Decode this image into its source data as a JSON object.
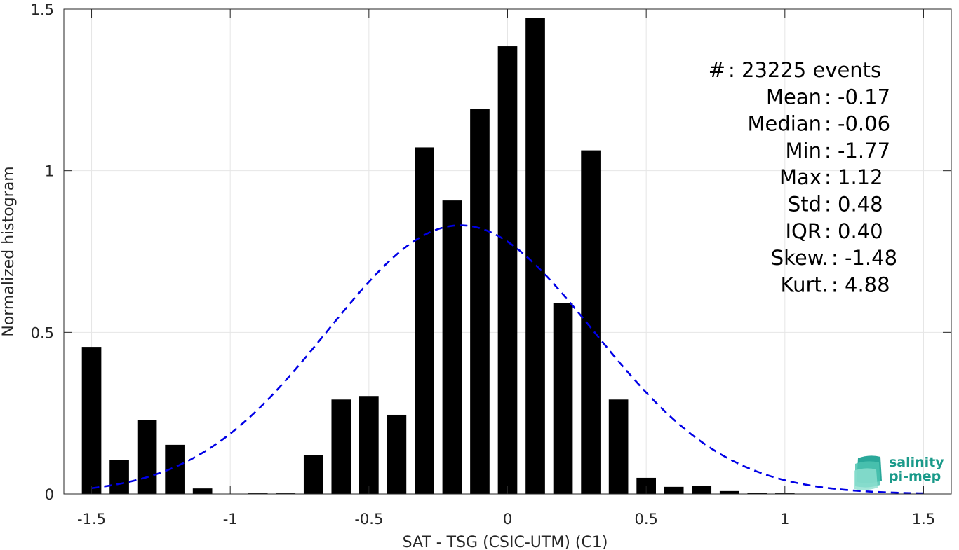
{
  "chart_data": {
    "type": "bar",
    "title": "",
    "xlabel": "SAT - TSG (CSIC-UTM) (C1)",
    "ylabel": "Normalized histogram",
    "xlim": [
      -1.6,
      1.6
    ],
    "ylim": [
      0,
      1.5
    ],
    "xticks": [
      -1.5,
      -1,
      -0.5,
      0,
      0.5,
      1,
      1.5
    ],
    "xtick_labels": [
      "-1.5",
      "-1",
      "-0.5",
      "0",
      "0.5",
      "1",
      "1.5"
    ],
    "yticks": [
      0,
      0.5,
      1,
      1.5
    ],
    "ytick_labels": [
      "0",
      "0.5",
      "1",
      "1.5"
    ],
    "grid": true,
    "bar_width": 0.07,
    "bars": {
      "x": [
        -1.5,
        -1.4,
        -1.3,
        -1.2,
        -1.1,
        -1.0,
        -0.9,
        -0.8,
        -0.7,
        -0.6,
        -0.5,
        -0.4,
        -0.3,
        -0.2,
        -0.1,
        0.0,
        0.1,
        0.2,
        0.3,
        0.4,
        0.5,
        0.6,
        0.7,
        0.8,
        0.9,
        1.0,
        1.1,
        1.2,
        1.3,
        1.4,
        1.5
      ],
      "values": [
        0.455,
        0.105,
        0.228,
        0.152,
        0.017,
        0.0,
        0.002,
        0.002,
        0.12,
        0.292,
        0.303,
        0.245,
        1.072,
        0.908,
        1.19,
        1.385,
        1.472,
        0.59,
        1.063,
        0.292,
        0.05,
        0.022,
        0.026,
        0.009,
        0.004,
        0.002,
        0.001,
        0.0,
        0.0,
        0.0,
        0.0
      ],
      "color": "#000000"
    },
    "fit": {
      "kind": "gaussian",
      "mean": -0.17,
      "std": 0.48,
      "x_range": [
        -1.5,
        1.5
      ],
      "style": "dashed",
      "color": "#0000e6"
    },
    "annotations": [
      {
        "label": "#  ",
        "value": ": 23225 events"
      },
      {
        "label": "Mean ",
        "value": ": -0.17"
      },
      {
        "label": "Median ",
        "value": ": -0.06"
      },
      {
        "label": "Min ",
        "value": ": -1.77"
      },
      {
        "label": "Max ",
        "value": ": 1.12"
      },
      {
        "label": "Std ",
        "value": ": 0.48"
      },
      {
        "label": "IQR ",
        "value": ": 0.40"
      },
      {
        "label": "Skew. ",
        "value": ": -1.48"
      },
      {
        "label": "Kurt. ",
        "value": ": 4.88"
      }
    ]
  },
  "logo": {
    "line1": "salinity",
    "line2": "pi-mep",
    "icon": "layered-waves-icon",
    "color": "#1a9a8a"
  }
}
